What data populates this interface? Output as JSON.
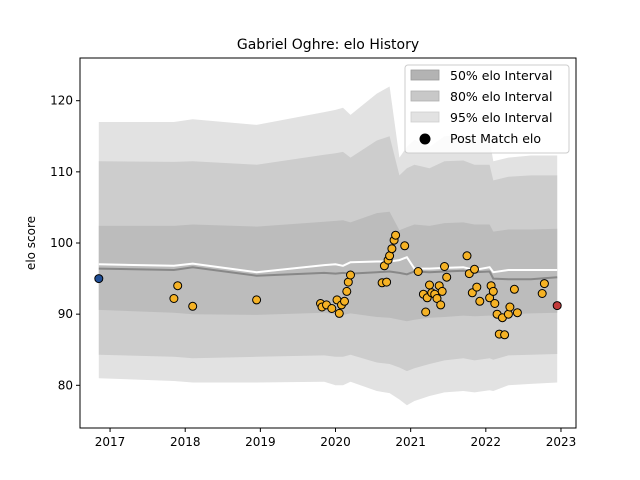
{
  "chart_data": {
    "type": "scatter",
    "title": "Gabriel Oghre: elo History",
    "xlabel": "",
    "ylabel": "elo score",
    "xlim": [
      2016.6,
      2023.2
    ],
    "ylim": [
      74,
      126
    ],
    "x_ticks": [
      2017,
      2018,
      2019,
      2020,
      2021,
      2022,
      2023
    ],
    "x_tick_labels": [
      "2017",
      "2018",
      "2019",
      "2020",
      "2021",
      "2022",
      "2023"
    ],
    "y_ticks": [
      80,
      90,
      100,
      110,
      120
    ],
    "y_tick_labels": [
      "80",
      "90",
      "100",
      "110",
      "120"
    ],
    "grid": false,
    "legend_position": "top-right",
    "legend": [
      {
        "label": "50% elo Interval",
        "kind": "patch",
        "color": "#b3b3b3"
      },
      {
        "label": "80% elo Interval",
        "kind": "patch",
        "color": "#c8c8c8"
      },
      {
        "label": "95% elo Interval",
        "kind": "patch",
        "color": "#e2e2e2"
      },
      {
        "label": "Post Match elo",
        "kind": "marker",
        "color": "#000000"
      }
    ],
    "colors": {
      "band95": "#e2e2e2",
      "band80": "#cdcdcd",
      "band50": "#bcbcbc",
      "median_line": "#888888",
      "expected_line": "#ffffff",
      "point_fill": "#f5b225",
      "point_edge": "#000000",
      "first_point": "#1f4e96",
      "last_point": "#c23b3b"
    },
    "bands": {
      "x": [
        2016.85,
        2017.85,
        2018.1,
        2018.95,
        2019.85,
        2020.0,
        2020.1,
        2020.2,
        2020.55,
        2020.72,
        2020.85,
        2020.95,
        2021.05,
        2021.25,
        2021.45,
        2021.7,
        2021.85,
        2022.05,
        2022.1,
        2022.3,
        2022.6,
        2022.95
      ],
      "p95_low": [
        81.0,
        80.6,
        80.4,
        80.4,
        80.5,
        80.0,
        80.0,
        80.5,
        79.2,
        78.9,
        78.0,
        77.2,
        77.8,
        78.5,
        79.0,
        79.2,
        79.0,
        79.3,
        79.2,
        80.0,
        80.2,
        80.4
      ],
      "p95_high": [
        117.0,
        117.0,
        117.4,
        116.6,
        118.4,
        118.7,
        119.0,
        118.0,
        121.0,
        122.0,
        112.0,
        113.5,
        114.5,
        113.5,
        115.0,
        115.2,
        114.5,
        114.5,
        111.5,
        112.0,
        112.3,
        112.3
      ],
      "p80_low": [
        84.3,
        84.0,
        83.8,
        84.0,
        84.2,
        84.0,
        84.0,
        84.3,
        83.2,
        83.0,
        82.5,
        82.0,
        82.4,
        83.0,
        83.5,
        83.8,
        83.5,
        83.8,
        83.6,
        84.2,
        84.3,
        84.4
      ],
      "p80_high": [
        111.5,
        111.4,
        111.5,
        111.0,
        112.4,
        112.6,
        112.8,
        112.0,
        114.4,
        115.0,
        109.5,
        110.5,
        111.0,
        110.5,
        111.5,
        111.6,
        111.0,
        111.0,
        108.8,
        109.3,
        109.5,
        109.5
      ],
      "p25": [
        90.6,
        90.2,
        90.0,
        89.9,
        90.2,
        90.0,
        89.9,
        90.1,
        89.6,
        89.5,
        89.2,
        89.0,
        89.2,
        89.5,
        89.6,
        89.8,
        89.7,
        89.8,
        89.7,
        90.0,
        90.1,
        90.2
      ],
      "p75": [
        102.4,
        102.4,
        102.6,
        102.3,
        103.0,
        103.1,
        103.2,
        102.9,
        104.2,
        104.4,
        101.8,
        102.2,
        102.6,
        102.4,
        102.8,
        102.9,
        102.6,
        102.6,
        101.6,
        101.9,
        101.9,
        102.0
      ],
      "median": [
        96.4,
        96.2,
        96.6,
        95.4,
        95.8,
        95.7,
        95.8,
        95.7,
        95.9,
        96.0,
        95.8,
        95.6,
        96.0,
        95.9,
        96.0,
        96.1,
        95.9,
        96.0,
        95.0,
        94.9,
        94.9,
        95.2
      ],
      "expected": [
        97.0,
        96.8,
        97.1,
        95.9,
        96.9,
        97.0,
        96.8,
        97.3,
        97.4,
        97.4,
        97.6,
        98.0,
        96.4,
        96.4,
        96.5,
        96.6,
        96.2,
        96.6,
        95.9,
        96.2,
        96.2,
        96.2
      ]
    },
    "points": {
      "x": [
        2016.85,
        2017.85,
        2017.9,
        2018.1,
        2018.95,
        2019.8,
        2019.82,
        2019.88,
        2019.95,
        2020.02,
        2020.05,
        2020.08,
        2020.12,
        2020.15,
        2020.17,
        2020.2,
        2020.62,
        2020.65,
        2020.68,
        2020.7,
        2020.72,
        2020.75,
        2020.78,
        2020.8,
        2020.92,
        2021.1,
        2021.17,
        2021.2,
        2021.22,
        2021.25,
        2021.28,
        2021.32,
        2021.35,
        2021.38,
        2021.4,
        2021.42,
        2021.45,
        2021.48,
        2021.75,
        2021.78,
        2021.82,
        2021.85,
        2021.88,
        2021.92,
        2022.05,
        2022.07,
        2022.1,
        2022.12,
        2022.15,
        2022.18,
        2022.22,
        2022.25,
        2022.3,
        2022.32,
        2022.38,
        2022.42,
        2022.75,
        2022.78,
        2022.95
      ],
      "y": [
        95.0,
        92.2,
        94.0,
        91.1,
        92.0,
        91.5,
        91.0,
        91.3,
        90.8,
        92.0,
        90.1,
        91.3,
        91.8,
        93.2,
        94.5,
        95.5,
        94.4,
        96.8,
        94.5,
        97.6,
        98.2,
        99.2,
        100.4,
        101.1,
        99.6,
        96.0,
        92.8,
        90.3,
        92.3,
        94.1,
        93.0,
        92.8,
        92.2,
        94.0,
        91.3,
        93.2,
        96.7,
        95.2,
        98.2,
        95.7,
        93.0,
        96.3,
        93.8,
        91.8,
        92.3,
        94.0,
        93.2,
        91.5,
        90.0,
        87.2,
        89.5,
        87.1,
        90.0,
        91.0,
        93.5,
        90.2,
        92.9,
        94.3,
        91.2
      ]
    }
  }
}
